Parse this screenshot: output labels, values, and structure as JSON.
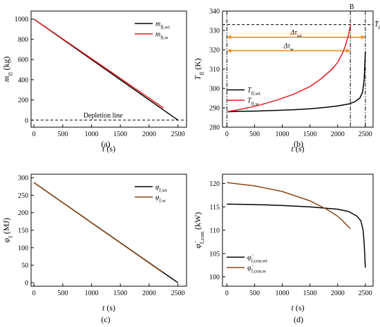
{
  "chart_data": [
    {
      "panel_label": "(a)",
      "type": "line",
      "xlabel": "t (s)",
      "ylabel": "m_fl (kg)",
      "xlim": [
        -50,
        2650
      ],
      "ylim": [
        -70,
        1080
      ],
      "xticks": [
        "0",
        "500",
        "1000",
        "1500",
        "2000",
        "2500"
      ],
      "yticks": [
        "0",
        "200",
        "400",
        "600",
        "800",
        "1000"
      ],
      "legend": "top-right",
      "series": [
        {
          "name": "m_fl,wt",
          "color": "#000000",
          "x": [
            0,
            2500
          ],
          "y": [
            1000,
            0
          ]
        },
        {
          "name": "m_fl,w",
          "color": "#e31a1c",
          "x": [
            0,
            2250
          ],
          "y": [
            1000,
            120
          ]
        }
      ],
      "reference_line": {
        "label": "Depletion line",
        "y": 0
      }
    },
    {
      "panel_label": "(b)",
      "type": "line",
      "xlabel": "t (s)",
      "ylabel": "T_fl (K)",
      "xlim": [
        -80,
        2640
      ],
      "ylim": [
        280,
        340
      ],
      "xticks": [
        "0",
        "500",
        "1000",
        "1500",
        "2000",
        "2500"
      ],
      "yticks": [
        "280",
        "290",
        "300",
        "310",
        "320",
        "330",
        "340"
      ],
      "legend": "bottom-left",
      "series": [
        {
          "name": "T_fl,wt",
          "color": "#000000",
          "x": [
            0,
            300,
            600,
            900,
            1200,
            1500,
            1800,
            2000,
            2200,
            2300,
            2400,
            2450,
            2480,
            2500
          ],
          "y": [
            288.0,
            288.2,
            288.4,
            288.7,
            289.0,
            289.5,
            290.3,
            291.0,
            292.0,
            293.0,
            295.0,
            298.0,
            305.0,
            319.0
          ]
        },
        {
          "name": "T_fl,w",
          "color": "#e31a1c",
          "x": [
            0,
            300,
            600,
            900,
            1200,
            1500,
            1700,
            1900,
            2000,
            2100,
            2150,
            2200,
            2230
          ],
          "y": [
            288.0,
            289.5,
            291.5,
            294.0,
            297.0,
            301.0,
            305.0,
            310.0,
            313.5,
            319.0,
            323.0,
            328.0,
            333.0
          ]
        }
      ],
      "reference_line": {
        "label": "T̄_fl",
        "y": 333
      },
      "annotations": [
        {
          "text": "B",
          "x": 2230
        },
        {
          "text": "Δτ_wt",
          "from": 0,
          "to": 2500,
          "y": 326.5
        },
        {
          "text": "Δτ_w",
          "from": 0,
          "to": 2230,
          "y": 319.5
        }
      ],
      "vlines": [
        0,
        2230,
        2500
      ]
    },
    {
      "panel_label": "(c)",
      "type": "line",
      "xlabel": "t (s)",
      "ylabel": "φ_f (MJ)",
      "xlim": [
        -50,
        2650
      ],
      "ylim": [
        -10,
        310
      ],
      "xticks": [
        "0",
        "500",
        "1000",
        "1500",
        "2000",
        "2500"
      ],
      "yticks": [
        "0",
        "50",
        "100",
        "150",
        "200",
        "250",
        "300"
      ],
      "legend": "top-right",
      "series": [
        {
          "name": "φ_f,wt",
          "color": "#000000",
          "x": [
            0,
            2500
          ],
          "y": [
            286,
            0
          ]
        },
        {
          "name": "φ_f,w",
          "color": "#8b4513",
          "x": [
            0,
            2230
          ],
          "y": [
            286,
            30
          ]
        }
      ]
    },
    {
      "panel_label": "(d)",
      "type": "line",
      "xlabel": "t (s)",
      "ylabel": "φ̇_f,con (kW)",
      "xlim": [
        -80,
        2640
      ],
      "ylim": [
        98,
        122
      ],
      "xticks": [
        "0",
        "500",
        "1000",
        "1500",
        "2000",
        "2500"
      ],
      "yticks": [
        "100",
        "105",
        "110",
        "115",
        "120"
      ],
      "legend": "bottom-left",
      "series": [
        {
          "name": "φ̇_f,con,wt",
          "color": "#000000",
          "x": [
            0,
            500,
            1000,
            1500,
            2000,
            2200,
            2350,
            2420,
            2460,
            2480,
            2500
          ],
          "y": [
            115.6,
            115.5,
            115.3,
            115.0,
            114.5,
            114.0,
            113.0,
            112.0,
            110.0,
            107.0,
            102.0
          ]
        },
        {
          "name": "φ̇_f,con,w",
          "color": "#8b4513",
          "x": [
            0,
            500,
            1000,
            1500,
            1800,
            2000,
            2100,
            2230
          ],
          "y": [
            120.2,
            119.5,
            118.3,
            116.3,
            114.5,
            113.0,
            111.9,
            110.3
          ]
        }
      ]
    }
  ]
}
